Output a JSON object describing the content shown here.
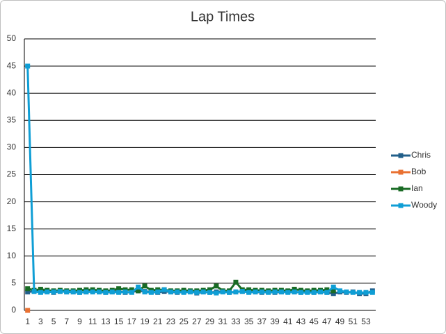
{
  "chart_data": {
    "type": "line",
    "title": "Lap Times",
    "categories": [
      1,
      null,
      3,
      null,
      5,
      null,
      7,
      null,
      9,
      null,
      11,
      null,
      13,
      null,
      15,
      null,
      17,
      null,
      19,
      null,
      21,
      null,
      23,
      null,
      25,
      null,
      27,
      null,
      29,
      null,
      31,
      null,
      33,
      null,
      35,
      null,
      37,
      null,
      39,
      null,
      41,
      null,
      43,
      null,
      45,
      null,
      47,
      null,
      49,
      null,
      51,
      null,
      53,
      null
    ],
    "series": [
      {
        "name": "Chris",
        "color": "#215f8a",
        "values": [
          3.4,
          3.5,
          3.4,
          3.5,
          3.3,
          3.5,
          3.4,
          3.4,
          3.3,
          3.4,
          3.5,
          3.4,
          3.3,
          3.4,
          3.5,
          3.3,
          3.4,
          3.6,
          3.5,
          3.4,
          3.3,
          3.5,
          3.4,
          3.3,
          3.4,
          3.5,
          3.2,
          3.4,
          3.3,
          3.4,
          3.5,
          3.3,
          3.4,
          3.5,
          3.4,
          3.4,
          3.3,
          3.4,
          3.3,
          3.4,
          3.5,
          3.4,
          3.3,
          3.4,
          3.3,
          3.4,
          3.3,
          3.1,
          3.4,
          3.3,
          3.4,
          3.1,
          3.1,
          3.6
        ]
      },
      {
        "name": "Bob",
        "color": "#e97132",
        "values": [
          0,
          null,
          null,
          null,
          null,
          null,
          null,
          null,
          null,
          null,
          null,
          null,
          null,
          null,
          null,
          null,
          null,
          null,
          null,
          null,
          null,
          null,
          null,
          null,
          null,
          null,
          null,
          null,
          null,
          null,
          null,
          null,
          null,
          null,
          null,
          null,
          null,
          null,
          null,
          null,
          null,
          null,
          null,
          null,
          null,
          null,
          null,
          null,
          null,
          null,
          null,
          null,
          null,
          null
        ]
      },
      {
        "name": "Ian",
        "color": "#196b24",
        "values": [
          4.0,
          3.7,
          3.9,
          3.7,
          3.6,
          3.7,
          3.6,
          3.6,
          3.7,
          3.8,
          3.8,
          3.7,
          3.6,
          3.7,
          4.0,
          3.8,
          3.8,
          3.6,
          4.5,
          3.7,
          3.8,
          3.8,
          3.6,
          3.6,
          3.7,
          3.6,
          3.6,
          3.7,
          3.8,
          4.5,
          3.6,
          3.6,
          5.2,
          3.8,
          3.8,
          3.7,
          3.7,
          3.6,
          3.7,
          3.7,
          3.6,
          3.9,
          3.7,
          3.6,
          3.7,
          3.7,
          3.8,
          3.6,
          null,
          null,
          null,
          null,
          null,
          null
        ]
      },
      {
        "name": "Woody",
        "color": "#0f9ed5",
        "values": [
          45,
          3.5,
          3.3,
          3.4,
          3.4,
          3.5,
          3.4,
          3.4,
          3.3,
          3.4,
          3.4,
          3.4,
          3.3,
          3.4,
          3.3,
          3.4,
          3.3,
          4.3,
          3.4,
          3.3,
          3.4,
          3.8,
          3.4,
          3.4,
          3.3,
          3.4,
          3.3,
          3.4,
          3.3,
          3.2,
          3.4,
          3.3,
          3.4,
          3.5,
          3.3,
          3.4,
          3.4,
          3.3,
          3.4,
          3.4,
          3.3,
          3.4,
          3.3,
          3.3,
          3.3,
          3.4,
          3.3,
          4.3,
          3.6,
          3.4,
          3.3,
          3.3,
          3.3,
          3.3
        ]
      }
    ],
    "ylim": [
      0,
      50
    ],
    "yticks": [
      0,
      5,
      10,
      15,
      20,
      25,
      30,
      35,
      40,
      45,
      50
    ],
    "grid": true,
    "legend": "right"
  }
}
